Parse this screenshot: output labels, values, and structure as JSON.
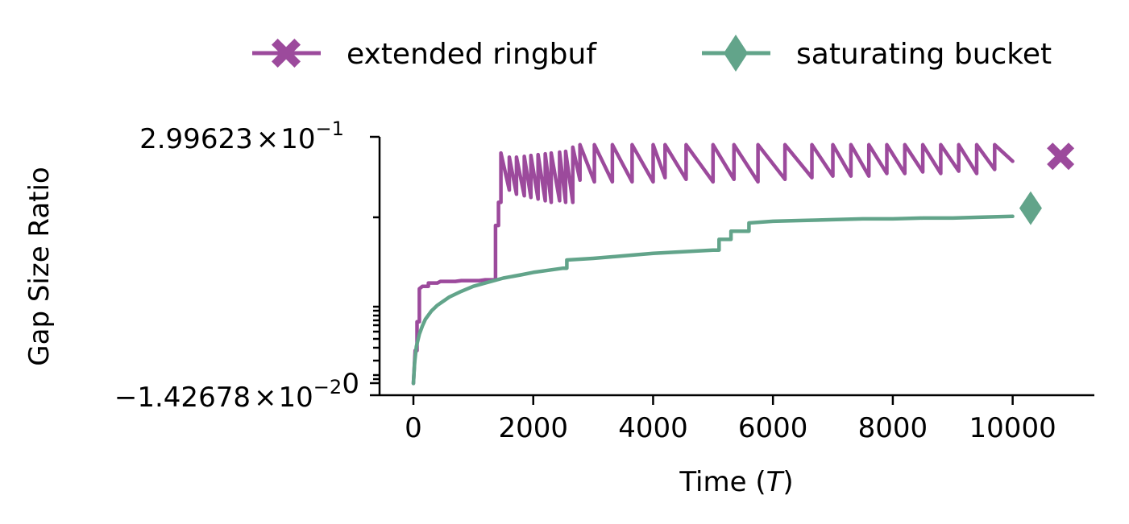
{
  "chart_data": {
    "type": "line",
    "xlabel": "Time ($T$)",
    "xlabel_parts": {
      "prefix": "Time (",
      "italic": "T",
      "suffix": ")"
    },
    "ylabel": "Gap Size Ratio",
    "xlim": [
      -600,
      11300
    ],
    "ylim": [
      -0.0142678,
      0.299623
    ],
    "xticks": [
      {
        "value": 0,
        "label": "0"
      },
      {
        "value": 2000,
        "label": "2000"
      },
      {
        "value": 4000,
        "label": "4000"
      },
      {
        "value": 6000,
        "label": "6000"
      },
      {
        "value": 8000,
        "label": "8000"
      },
      {
        "value": 10000,
        "label": "10000"
      }
    ],
    "yticks": [
      {
        "value": 0.299623,
        "mantissa": "2.99623",
        "times": "×",
        "base": "10",
        "exponent": "−1"
      },
      {
        "value": -0.0142678,
        "mantissa": "−1.42678",
        "times": "×",
        "base": "10",
        "exponent": "−2"
      },
      {
        "value": 0,
        "label": "0"
      }
    ],
    "legend_placement": "top-center",
    "grid": false,
    "series": [
      {
        "name": "extended ringbuf",
        "color": "#9c4a9c",
        "marker": "X",
        "end_marker": {
          "x": 10800,
          "y": 0.276
        },
        "x": [
          0,
          30,
          60,
          60,
          100,
          100,
          150,
          200,
          250,
          250,
          350,
          400,
          450,
          500,
          600,
          700,
          800,
          900,
          1000,
          1100,
          1200,
          1300,
          1370,
          1370,
          1420,
          1420,
          1460,
          1460,
          1600,
          1600,
          1720,
          1720,
          1850,
          1850,
          1960,
          1960,
          2080,
          2080,
          2200,
          2200,
          2300,
          2300,
          2440,
          2440,
          2540,
          2540,
          2660,
          2660,
          2780,
          2780,
          3020,
          3020,
          3320,
          3320,
          3650,
          3650,
          4000,
          4000,
          4200,
          4200,
          4550,
          4550,
          5000,
          5000,
          5350,
          5350,
          5750,
          5750,
          6200,
          6200,
          6650,
          6650,
          7000,
          7000,
          7300,
          7300,
          7600,
          7600,
          7900,
          7900,
          8200,
          8200,
          8500,
          8500,
          8800,
          8800,
          9100,
          9100,
          9400,
          9400,
          9700,
          9700,
          10000
        ],
        "y": [
          0.0,
          0.04,
          0.04,
          0.075,
          0.075,
          0.115,
          0.118,
          0.118,
          0.118,
          0.122,
          0.122,
          0.122,
          0.124,
          0.124,
          0.124,
          0.124,
          0.125,
          0.125,
          0.125,
          0.125,
          0.126,
          0.126,
          0.126,
          0.192,
          0.192,
          0.22,
          0.22,
          0.28,
          0.235,
          0.275,
          0.23,
          0.275,
          0.228,
          0.276,
          0.226,
          0.277,
          0.224,
          0.278,
          0.222,
          0.279,
          0.22,
          0.28,
          0.222,
          0.281,
          0.22,
          0.282,
          0.22,
          0.287,
          0.247,
          0.29,
          0.245,
          0.29,
          0.245,
          0.29,
          0.245,
          0.29,
          0.245,
          0.29,
          0.25,
          0.29,
          0.248,
          0.29,
          0.245,
          0.29,
          0.248,
          0.29,
          0.245,
          0.29,
          0.248,
          0.29,
          0.25,
          0.29,
          0.252,
          0.29,
          0.252,
          0.29,
          0.252,
          0.29,
          0.255,
          0.29,
          0.255,
          0.29,
          0.257,
          0.29,
          0.255,
          0.29,
          0.258,
          0.29,
          0.255,
          0.29,
          0.26,
          0.29,
          0.27
        ]
      },
      {
        "name": "saturating bucket",
        "color": "#62a48a",
        "marker": "d",
        "end_marker": {
          "x": 10300,
          "y": 0.213
        },
        "x": [
          0,
          20,
          50,
          100,
          150,
          200,
          300,
          400,
          500,
          600,
          800,
          1000,
          1200,
          1500,
          1800,
          2000,
          2200,
          2500,
          2560,
          2560,
          3000,
          3500,
          4000,
          4500,
          5000,
          5100,
          5100,
          5300,
          5300,
          5600,
          5600,
          6000,
          6500,
          7000,
          7500,
          8000,
          8500,
          9000,
          9500,
          10000
        ],
        "y": [
          0.0,
          0.025,
          0.045,
          0.06,
          0.07,
          0.078,
          0.088,
          0.095,
          0.1,
          0.105,
          0.112,
          0.118,
          0.122,
          0.128,
          0.132,
          0.135,
          0.137,
          0.14,
          0.14,
          0.15,
          0.152,
          0.155,
          0.158,
          0.16,
          0.162,
          0.162,
          0.175,
          0.175,
          0.185,
          0.185,
          0.195,
          0.197,
          0.198,
          0.199,
          0.2,
          0.2,
          0.201,
          0.201,
          0.202,
          0.203
        ]
      }
    ]
  }
}
